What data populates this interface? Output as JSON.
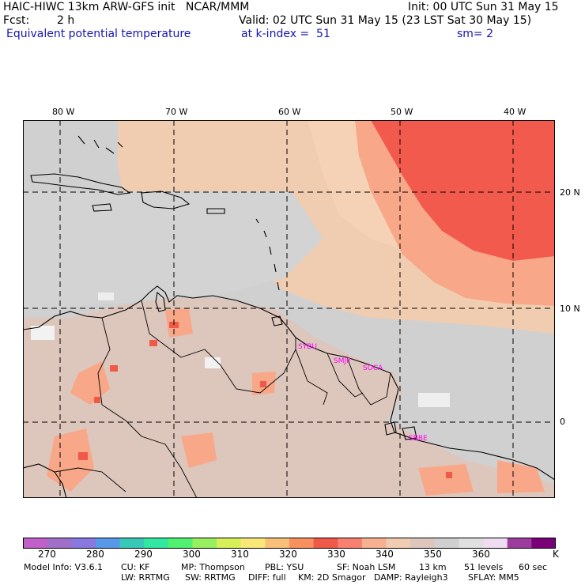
{
  "header": {
    "line1_left": "HAIC-HIWC 13km ARW-GFS init   NCAR/MMM",
    "line1_right": "Init: 00 UTC Sun 31 May 15",
    "fcst_label": "Fcst:",
    "fcst_value": "2 h",
    "valid": "Valid: 02 UTC Sun 31 May 15 (23 LST Sat 30 May 15)",
    "field_name": "Equivalent potential temperature",
    "level": "at k-index =  51",
    "smoothing": "sm= 2"
  },
  "map": {
    "lon_labels": [
      "80 W",
      "70 W",
      "60 W",
      "50 W",
      "40 W"
    ],
    "lat_labels": [
      "20 N",
      "10 N",
      "0"
    ],
    "stations": [
      "SYBU",
      "SMJP",
      "SOCA",
      "SBBE"
    ]
  },
  "colorbar": {
    "colors": [
      "#c060c8",
      "#a070c8",
      "#8878e0",
      "#5898e8",
      "#38c8b8",
      "#30e8a0",
      "#50f070",
      "#98f060",
      "#d8f058",
      "#f8e878",
      "#f8c078",
      "#f89060",
      "#f05848",
      "#f88070",
      "#f8b090",
      "#f0cdb0",
      "#ddc6bc",
      "#d0d0d0",
      "#e0e0e0",
      "#f0dcf0",
      "#9c3c9c",
      "#7a0078"
    ],
    "labels": [
      "270",
      "280",
      "290",
      "300",
      "310",
      "320",
      "330",
      "340",
      "350",
      "360"
    ],
    "unit": "K"
  },
  "footer": {
    "line1": [
      "Model Info: V3.6.1",
      "CU: KF",
      "MP: Thompson",
      "PBL: YSU",
      "SF: Noah LSM",
      "13 km",
      "51 levels",
      "60 sec"
    ],
    "line2": [
      "LW: RRTMG",
      "SW: RRTMG",
      "DIFF: full",
      "KM: 2D Smagor",
      "DAMP: Rayleigh3",
      "SFLAY: MM5"
    ]
  }
}
